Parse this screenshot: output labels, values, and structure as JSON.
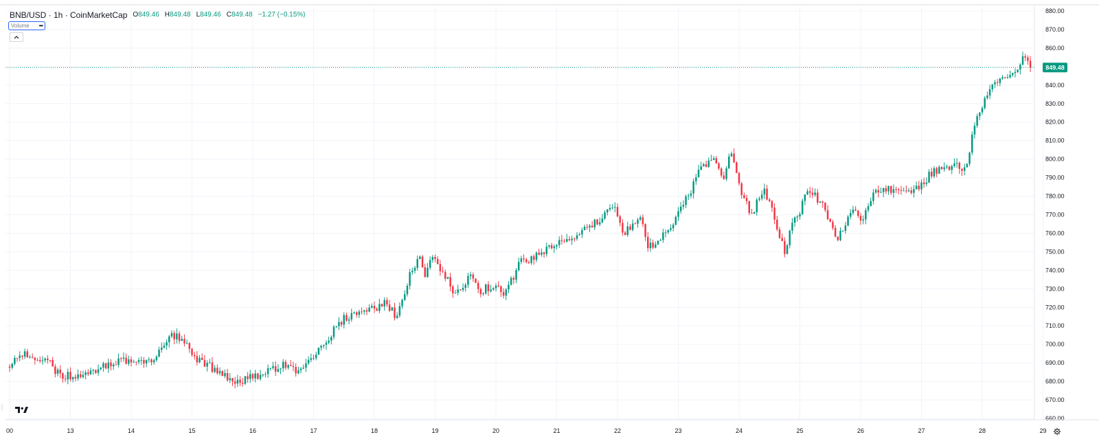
{
  "legend": {
    "symbol_line": "BNB/USD · 1h · CoinMarketCap",
    "open_label": "O",
    "open_value": "849.46",
    "high_label": "H",
    "high_value": "849.48",
    "low_label": "L",
    "low_value": "849.46",
    "close_label": "C",
    "close_value": "849.48",
    "change": "−1.27 (−0.15%)"
  },
  "volume_chip": {
    "label": "Volume",
    "menu_glyph": "•••"
  },
  "collapse_button": {
    "icon": "chevron-up-icon"
  },
  "logo": {
    "text": "TV",
    "icon": "tradingview-logo-icon"
  },
  "settings_button": {
    "icon": "gear-icon"
  },
  "colors": {
    "up": "#089981",
    "down": "#f23645",
    "grid": "#f0f3fa",
    "axis_text": "#131722",
    "price_line": "#089981",
    "top_border": "#d9dce6"
  },
  "chart_data": {
    "type": "candlestick",
    "title": "BNB/USD · 1h · CoinMarketCap",
    "xlabel": "",
    "ylabel": "",
    "ylim": [
      658,
      882
    ],
    "y_ticks": [
      "880.00",
      "870.00",
      "860.00",
      "850.00",
      "840.00",
      "830.00",
      "820.00",
      "810.00",
      "800.00",
      "790.00",
      "780.00",
      "770.00",
      "760.00",
      "750.00",
      "740.00",
      "730.00",
      "720.00",
      "710.00",
      "700.00",
      "690.00",
      "680.00",
      "670.00",
      "660.00"
    ],
    "x_ticks": [
      "00",
      "13",
      "14",
      "15",
      "16",
      "17",
      "18",
      "19",
      "20",
      "21",
      "22",
      "23",
      "24",
      "25",
      "26",
      "27",
      "28",
      "29"
    ],
    "current_price": "849.48",
    "grid": true,
    "legend_placement": "top-left",
    "price_anchors": [
      [
        12.0,
        688
      ],
      [
        12.2,
        695
      ],
      [
        12.6,
        692
      ],
      [
        12.75,
        686
      ],
      [
        12.9,
        683
      ],
      [
        13.2,
        684
      ],
      [
        13.6,
        689
      ],
      [
        14.0,
        692
      ],
      [
        14.3,
        691
      ],
      [
        14.55,
        698
      ],
      [
        14.65,
        706
      ],
      [
        14.9,
        701
      ],
      [
        15.0,
        694
      ],
      [
        15.25,
        689
      ],
      [
        15.5,
        683
      ],
      [
        15.75,
        680
      ],
      [
        15.9,
        681
      ],
      [
        16.3,
        686
      ],
      [
        16.5,
        690
      ],
      [
        16.7,
        686
      ],
      [
        17.0,
        694
      ],
      [
        17.25,
        704
      ],
      [
        17.5,
        714
      ],
      [
        17.85,
        718
      ],
      [
        18.1,
        721
      ],
      [
        18.2,
        723
      ],
      [
        18.35,
        715
      ],
      [
        18.45,
        724
      ],
      [
        18.6,
        740
      ],
      [
        18.75,
        747
      ],
      [
        18.82,
        735
      ],
      [
        18.95,
        750
      ],
      [
        19.05,
        742
      ],
      [
        19.18,
        737
      ],
      [
        19.3,
        727
      ],
      [
        19.45,
        731
      ],
      [
        19.6,
        738
      ],
      [
        19.75,
        729
      ],
      [
        19.95,
        732
      ],
      [
        20.15,
        727
      ],
      [
        20.4,
        744
      ],
      [
        20.65,
        747
      ],
      [
        20.9,
        752
      ],
      [
        21.1,
        755
      ],
      [
        21.4,
        760
      ],
      [
        21.65,
        766
      ],
      [
        21.95,
        776
      ],
      [
        22.0,
        769
      ],
      [
        22.1,
        760
      ],
      [
        22.4,
        768
      ],
      [
        22.5,
        751
      ],
      [
        22.65,
        757
      ],
      [
        22.85,
        761
      ],
      [
        23.0,
        771
      ],
      [
        23.2,
        783
      ],
      [
        23.35,
        796
      ],
      [
        23.6,
        799
      ],
      [
        23.75,
        790
      ],
      [
        23.85,
        806
      ],
      [
        23.95,
        795
      ],
      [
        24.0,
        786
      ],
      [
        24.1,
        777
      ],
      [
        24.2,
        770
      ],
      [
        24.4,
        783
      ],
      [
        24.55,
        774
      ],
      [
        24.65,
        760
      ],
      [
        24.75,
        749
      ],
      [
        24.9,
        768
      ],
      [
        25.0,
        771
      ],
      [
        25.1,
        783
      ],
      [
        25.25,
        781
      ],
      [
        25.4,
        773
      ],
      [
        25.6,
        757
      ],
      [
        25.75,
        766
      ],
      [
        25.9,
        772
      ],
      [
        26.0,
        766
      ],
      [
        26.2,
        781
      ],
      [
        26.4,
        784
      ],
      [
        26.6,
        783
      ],
      [
        26.85,
        782
      ],
      [
        27.0,
        786
      ],
      [
        27.2,
        794
      ],
      [
        27.6,
        796
      ],
      [
        27.72,
        795
      ],
      [
        27.8,
        807
      ],
      [
        27.9,
        822
      ],
      [
        28.05,
        833
      ],
      [
        28.2,
        843
      ],
      [
        28.45,
        845
      ],
      [
        28.55,
        846
      ],
      [
        28.65,
        855
      ],
      [
        28.72,
        857
      ],
      [
        28.78,
        849.48
      ]
    ]
  }
}
